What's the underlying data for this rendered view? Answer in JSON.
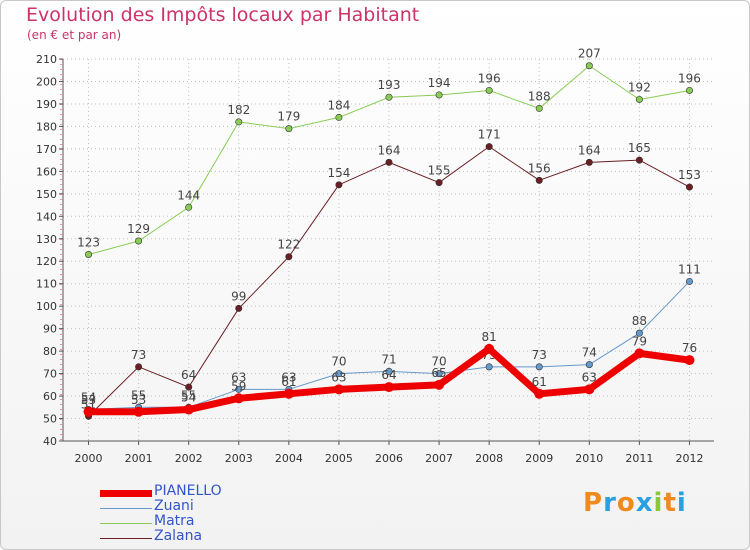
{
  "title": "Evolution des Impôts locaux par Habitant",
  "subtitle": "(en € et par an)",
  "logo": {
    "text": "Proxiti",
    "letters": [
      "P",
      "r",
      "o",
      "x",
      "i",
      "t",
      "i"
    ],
    "colors": [
      "#f08a1e",
      "#2aa0e0",
      "#f08a1e",
      "#2aa0e0",
      "#8cc63e",
      "#f08a1e",
      "#2aa0e0"
    ]
  },
  "chart_data": {
    "type": "line",
    "title": "Evolution des Impôts locaux par Habitant",
    "ylabel": "(en € et par an)",
    "xlabel": "",
    "ylim": [
      40,
      210
    ],
    "ytick_step": 10,
    "grid": true,
    "categories": [
      "2000",
      "2001",
      "2002",
      "2003",
      "2004",
      "2005",
      "2006",
      "2007",
      "2008",
      "2009",
      "2010",
      "2011",
      "2012"
    ],
    "series": [
      {
        "name": "Zalana",
        "color": "#6b1f24",
        "width": 1,
        "values": [
          51,
          73,
          64,
          99,
          122,
          154,
          164,
          155,
          171,
          156,
          164,
          165,
          153
        ]
      },
      {
        "name": "Matra",
        "color": "#88cc55",
        "width": 1,
        "values": [
          123,
          129,
          144,
          182,
          179,
          184,
          193,
          194,
          196,
          188,
          207,
          192,
          196
        ]
      },
      {
        "name": "Zuani",
        "color": "#6699cc",
        "width": 1,
        "values": [
          54,
          55,
          55,
          63,
          63,
          70,
          71,
          70,
          73,
          73,
          74,
          88,
          111
        ]
      },
      {
        "name": "PIANELLO",
        "color": "#ee0000",
        "width": 7,
        "values": [
          53,
          53,
          54,
          59,
          61,
          63,
          64,
          65,
          81,
          61,
          63,
          79,
          76
        ]
      }
    ],
    "legend": [
      "PIANELLO",
      "Zuani",
      "Matra",
      "Zalana"
    ]
  }
}
